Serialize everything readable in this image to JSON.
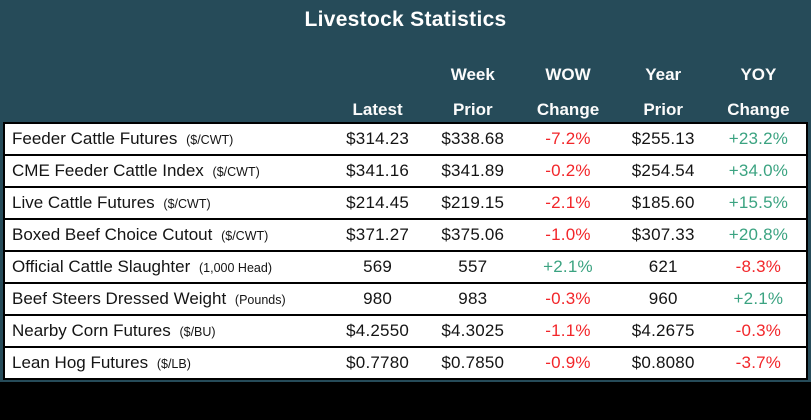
{
  "title": "Livestock Statistics",
  "colors": {
    "header_bg": "#264b59",
    "positive": "#3ba381",
    "negative": "#f2262a",
    "row_bg": "#ffffff",
    "border": "#000000",
    "footer_bg": "#000000"
  },
  "chart_data": {
    "type": "table",
    "title": "Livestock Statistics",
    "column_headers": [
      {
        "line1": "",
        "line2": "Latest"
      },
      {
        "line1": "Week",
        "line2": "Prior"
      },
      {
        "line1": "WOW",
        "line2": "Change"
      },
      {
        "line1": "Year",
        "line2": "Prior"
      },
      {
        "line1": "YOY",
        "line2": "Change"
      }
    ],
    "rows": [
      {
        "label": "Feeder Cattle Futures",
        "unit": "($/CWT)",
        "latest": "$314.23",
        "week_prior": "$338.68",
        "wow_change": "-7.2%",
        "year_prior": "$255.13",
        "yoy_change": "+23.2%"
      },
      {
        "label": "CME Feeder Cattle Index",
        "unit": "($/CWT)",
        "latest": "$341.16",
        "week_prior": "$341.89",
        "wow_change": "-0.2%",
        "year_prior": "$254.54",
        "yoy_change": "+34.0%"
      },
      {
        "label": "Live Cattle Futures",
        "unit": "($/CWT)",
        "latest": "$214.45",
        "week_prior": "$219.15",
        "wow_change": "-2.1%",
        "year_prior": "$185.60",
        "yoy_change": "+15.5%"
      },
      {
        "label": "Boxed Beef Choice Cutout",
        "unit": "($/CWT)",
        "latest": "$371.27",
        "week_prior": "$375.06",
        "wow_change": "-1.0%",
        "year_prior": "$307.33",
        "yoy_change": "+20.8%"
      },
      {
        "label": "Official Cattle Slaughter",
        "unit": "(1,000 Head)",
        "latest": "569",
        "week_prior": "557",
        "wow_change": "+2.1%",
        "year_prior": "621",
        "yoy_change": "-8.3%"
      },
      {
        "label": "Beef Steers Dressed Weight",
        "unit": "(Pounds)",
        "latest": "980",
        "week_prior": "983",
        "wow_change": "-0.3%",
        "year_prior": "960",
        "yoy_change": "+2.1%"
      },
      {
        "label": "Nearby Corn Futures",
        "unit": "($/BU)",
        "latest": "$4.2550",
        "week_prior": "$4.3025",
        "wow_change": "-1.1%",
        "year_prior": "$4.2675",
        "yoy_change": "-0.3%"
      },
      {
        "label": "Lean Hog Futures",
        "unit": "($/LB)",
        "latest": "$0.7780",
        "week_prior": "$0.7850",
        "wow_change": "-0.9%",
        "year_prior": "$0.8080",
        "yoy_change": "-3.7%"
      }
    ]
  }
}
